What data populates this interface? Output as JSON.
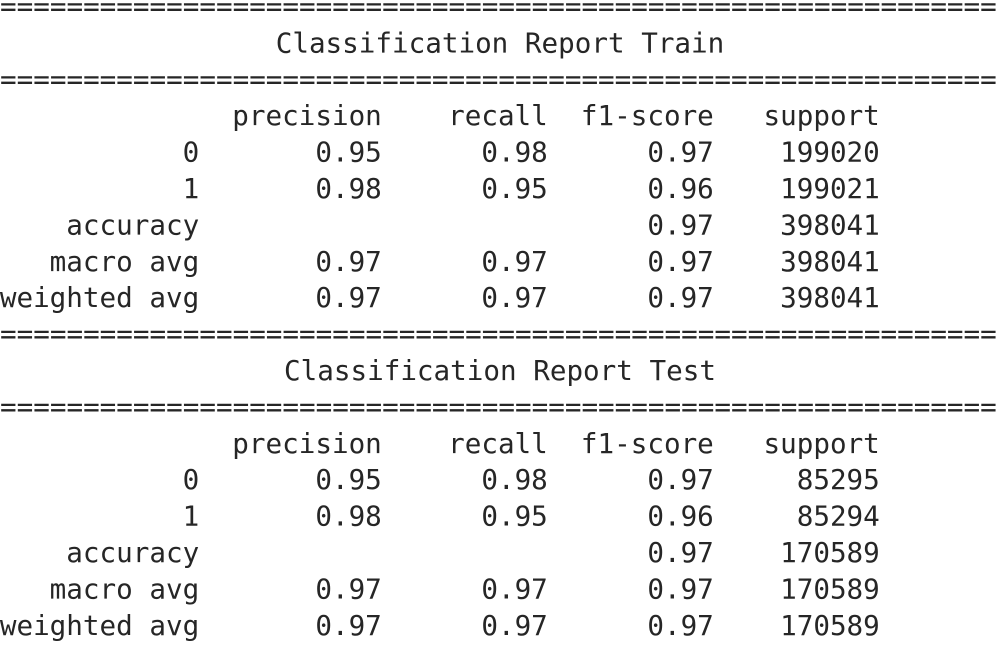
{
  "separator": "============================================================",
  "reports": [
    {
      "title": "Classification Report Train",
      "columns": [
        "precision",
        "recall",
        "f1-score",
        "support"
      ],
      "rows": [
        {
          "label": "0",
          "precision": 0.95,
          "recall": 0.98,
          "f1-score": 0.97,
          "support": 199020
        },
        {
          "label": "1",
          "precision": 0.98,
          "recall": 0.95,
          "f1-score": 0.96,
          "support": 199021
        },
        {
          "label": "accuracy",
          "f1-score": 0.97,
          "support": 398041
        },
        {
          "label": "macro avg",
          "precision": 0.97,
          "recall": 0.97,
          "f1-score": 0.97,
          "support": 398041
        },
        {
          "label": "weighted avg",
          "precision": 0.97,
          "recall": 0.97,
          "f1-score": 0.97,
          "support": 398041
        }
      ]
    },
    {
      "title": "Classification Report Test",
      "columns": [
        "precision",
        "recall",
        "f1-score",
        "support"
      ],
      "rows": [
        {
          "label": "0",
          "precision": 0.95,
          "recall": 0.98,
          "f1-score": 0.97,
          "support": 85295
        },
        {
          "label": "1",
          "precision": 0.98,
          "recall": 0.95,
          "f1-score": 0.96,
          "support": 85294
        },
        {
          "label": "accuracy",
          "f1-score": 0.97,
          "support": 170589
        },
        {
          "label": "macro avg",
          "precision": 0.97,
          "recall": 0.97,
          "f1-score": 0.97,
          "support": 170589
        },
        {
          "label": "weighted avg",
          "precision": 0.97,
          "recall": 0.97,
          "f1-score": 0.97,
          "support": 170589
        }
      ]
    }
  ]
}
